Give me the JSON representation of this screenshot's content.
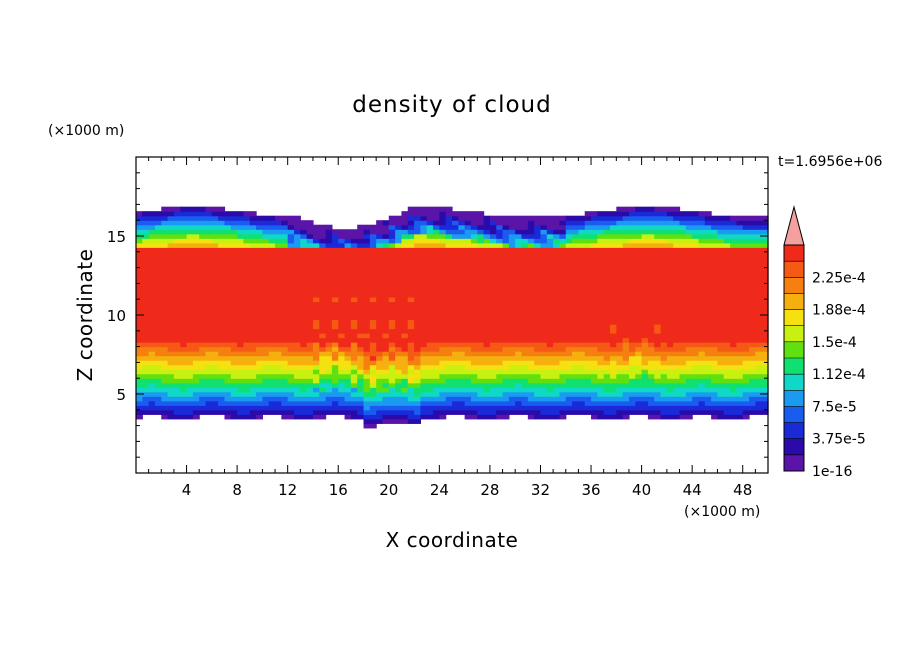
{
  "chart_data": {
    "type": "heatmap",
    "title": "density of cloud",
    "time_label": "t=1.6956e+06",
    "xlabel": "X coordinate",
    "ylabel": "Z coordinate",
    "x_unit_label": "(×1000 m)",
    "y_unit_label": "(×1000 m)",
    "xlim": [
      0,
      50
    ],
    "ylim": [
      0,
      20
    ],
    "x_ticks": [
      4,
      8,
      12,
      16,
      20,
      24,
      28,
      32,
      36,
      40,
      44,
      48
    ],
    "y_ticks": [
      5,
      10,
      15
    ],
    "colorbar": {
      "labels": [
        "2.25e-4",
        "1.88e-4",
        "1.5e-4",
        "1.12e-4",
        "7.5e-5",
        "3.75e-5",
        "1e-16"
      ],
      "levels": [
        0,
        1.88e-05,
        3.75e-05,
        5.63e-05,
        7.5e-05,
        9.38e-05,
        0.0001125,
        0.0001313,
        0.00015,
        0.0001688,
        0.0001875,
        0.0002063,
        0.000225,
        0.0002438
      ],
      "colors": [
        "#5a14a8",
        "#2a0aa8",
        "#1a2ad8",
        "#1a5cf0",
        "#1a9af0",
        "#10d8c8",
        "#10e070",
        "#60e010",
        "#c8f010",
        "#f5e010",
        "#f5b010",
        "#f58010",
        "#f55a14",
        "#f02a1a",
        "#f5a0a0"
      ],
      "extend": "max"
    },
    "cloud_summary": {
      "base_z_km": 3.5,
      "top_z_km": 16.5,
      "core_z_range_km": [
        8.5,
        14
      ],
      "core_value": 0.000225,
      "updraft_x_km": 20
    }
  }
}
